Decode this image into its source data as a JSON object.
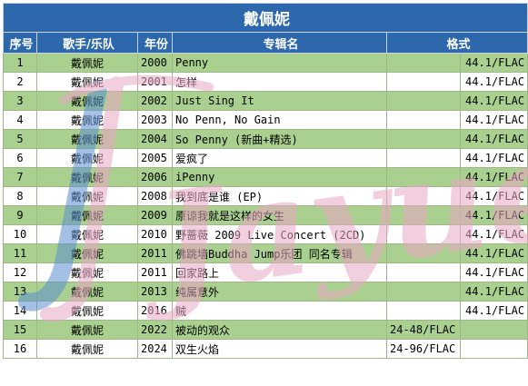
{
  "title": "戴佩妮",
  "headers": {
    "index": "序号",
    "artist": "歌手/乐队",
    "year": "年份",
    "album": "专辑名",
    "format": "格式"
  },
  "rows": [
    {
      "index": "1",
      "artist": "戴佩妮",
      "year": "2000",
      "album": "Penny",
      "format_a": "",
      "format_b": "44.1/FLAC"
    },
    {
      "index": "2",
      "artist": "戴佩妮",
      "year": "2001",
      "album": "怎样",
      "format_a": "",
      "format_b": "44.1/FLAC"
    },
    {
      "index": "3",
      "artist": "戴佩妮",
      "year": "2002",
      "album": "Just Sing It",
      "format_a": "",
      "format_b": "44.1/FLAC"
    },
    {
      "index": "4",
      "artist": "戴佩妮",
      "year": "2003",
      "album": "No Penn, No Gain",
      "format_a": "",
      "format_b": "44.1/FLAC"
    },
    {
      "index": "5",
      "artist": "戴佩妮",
      "year": "2004",
      "album": "So Penny (新曲+精选)",
      "format_a": "",
      "format_b": "44.1/FLAC"
    },
    {
      "index": "6",
      "artist": "戴佩妮",
      "year": "2005",
      "album": "爱疯了",
      "format_a": "",
      "format_b": "44.1/FLAC"
    },
    {
      "index": "7",
      "artist": "戴佩妮",
      "year": "2006",
      "album": "iPenny",
      "format_a": "",
      "format_b": "44.1/FLAC"
    },
    {
      "index": "8",
      "artist": "戴佩妮",
      "year": "2008",
      "album": "我到底是谁 (EP)",
      "format_a": "",
      "format_b": "44.1/FLAC"
    },
    {
      "index": "9",
      "artist": "戴佩妮",
      "year": "2009",
      "album": "原谅我就是这样的女生",
      "format_a": "",
      "format_b": "44.1/FLAC"
    },
    {
      "index": "10",
      "artist": "戴佩妮",
      "year": "2010",
      "album": "野蔷薇 2009 Live Concert (2CD)",
      "format_a": "",
      "format_b": "44.1/FLAC"
    },
    {
      "index": "11",
      "artist": "戴佩妮",
      "year": "2011",
      "album": "佛跳墙Buddha Jump乐团 同名专辑",
      "format_a": "",
      "format_b": "44.1/FLAC"
    },
    {
      "index": "12",
      "artist": "戴佩妮",
      "year": "2011",
      "album": "回家路上",
      "format_a": "",
      "format_b": "44.1/FLAC"
    },
    {
      "index": "13",
      "artist": "戴佩妮",
      "year": "2013",
      "album": "纯属意外",
      "format_a": "",
      "format_b": "44.1/FLAC"
    },
    {
      "index": "14",
      "artist": "戴佩妮",
      "year": "2016",
      "album": "贼",
      "format_a": "",
      "format_b": "44.1/FLAC"
    },
    {
      "index": "15",
      "artist": "戴佩妮",
      "year": "2022",
      "album": "被动的观众",
      "format_a": "24-48/FLAC",
      "format_b": ""
    },
    {
      "index": "16",
      "artist": "戴佩妮",
      "year": "2024",
      "album": "双生火焰",
      "format_a": "24-96/FLAC",
      "format_b": ""
    }
  ],
  "watermark": {
    "text": "Jayue",
    "color_main": "#e9a8c6",
    "color_accent": "#5a8fd0"
  },
  "colors": {
    "header_bg": "#2d68ad",
    "row_green": "#a9d08e",
    "row_white": "#ffffff"
  }
}
